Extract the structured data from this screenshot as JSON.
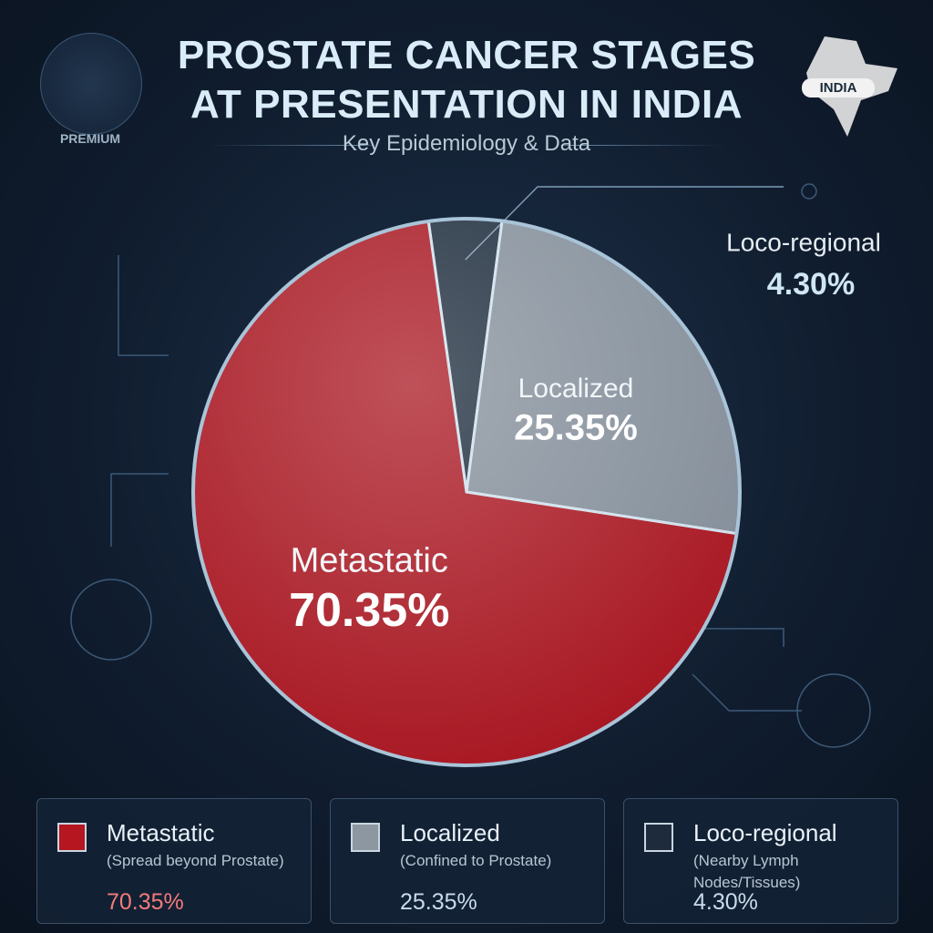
{
  "chart_data": {
    "type": "pie",
    "title": "PROSTATE CANCER STAGES AT PRESENTATION IN INDIA",
    "subtitle": "Key Epidemiology & Data",
    "badge": "PREMIUM",
    "map_label": "INDIA",
    "categories": [
      "Metastatic",
      "Localized",
      "Loco-regional"
    ],
    "values": [
      70.35,
      25.35,
      4.3
    ],
    "value_labels": [
      "70.35%",
      "25.35%",
      "4.30%"
    ],
    "descriptions": [
      "(Spread beyond Prostate)",
      "(Confined to Prostate)",
      "(Nearby Lymph Nodes/Tissues)"
    ],
    "colors": [
      "#b5161f",
      "#8d97a2",
      "#1d2b3c"
    ],
    "value_label_colors": [
      "#f27b7b",
      "#c7dcea",
      "#c7dcea"
    ],
    "legend": "bottom"
  }
}
